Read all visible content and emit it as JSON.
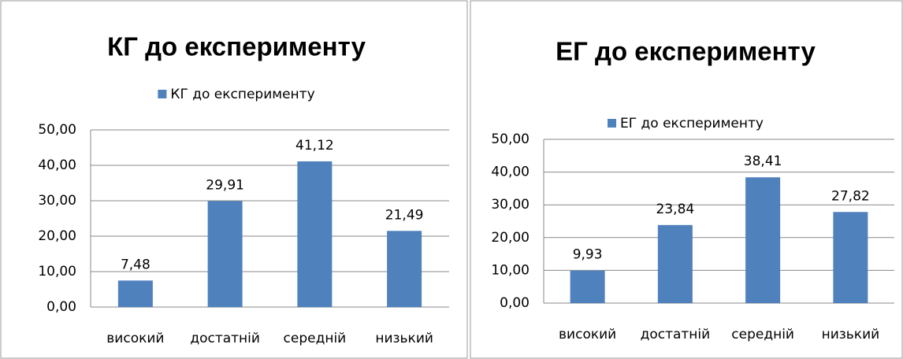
{
  "chart_data": [
    {
      "type": "bar",
      "title": "КГ до експерименту",
      "categories": [
        "високий",
        "достатній",
        "середній",
        "низький"
      ],
      "series": [
        {
          "name": "КГ до експерименту",
          "color": "#4f81bd",
          "values": [
            7.48,
            29.91,
            41.12,
            21.49
          ],
          "value_labels": [
            "7,48",
            "29,91",
            "41,12",
            "21,49"
          ]
        }
      ],
      "ylim": [
        0,
        50
      ],
      "yticks": [
        {
          "value": 0,
          "label": "0,00"
        },
        {
          "value": 10,
          "label": "10,00"
        },
        {
          "value": 20,
          "label": "20,00"
        },
        {
          "value": 30,
          "label": "30,00"
        },
        {
          "value": 40,
          "label": "40,00"
        },
        {
          "value": 50,
          "label": "50,00"
        }
      ],
      "grid": true,
      "legend": "top"
    },
    {
      "type": "bar",
      "title": "ЕГ до експерименту",
      "categories": [
        "високий",
        "достатній",
        "середній",
        "низький"
      ],
      "series": [
        {
          "name": "ЕГ до експерименту",
          "color": "#4f81bd",
          "values": [
            9.93,
            23.84,
            38.41,
            27.82
          ],
          "value_labels": [
            "9,93",
            "23,84",
            "38,41",
            "27,82"
          ]
        }
      ],
      "ylim": [
        0,
        50
      ],
      "yticks": [
        {
          "value": 0,
          "label": "0,00"
        },
        {
          "value": 10,
          "label": "10,00"
        },
        {
          "value": 20,
          "label": "20,00"
        },
        {
          "value": 30,
          "label": "30,00"
        },
        {
          "value": 40,
          "label": "40,00"
        },
        {
          "value": 50,
          "label": "50,00"
        }
      ],
      "grid": true,
      "legend": "top"
    }
  ]
}
